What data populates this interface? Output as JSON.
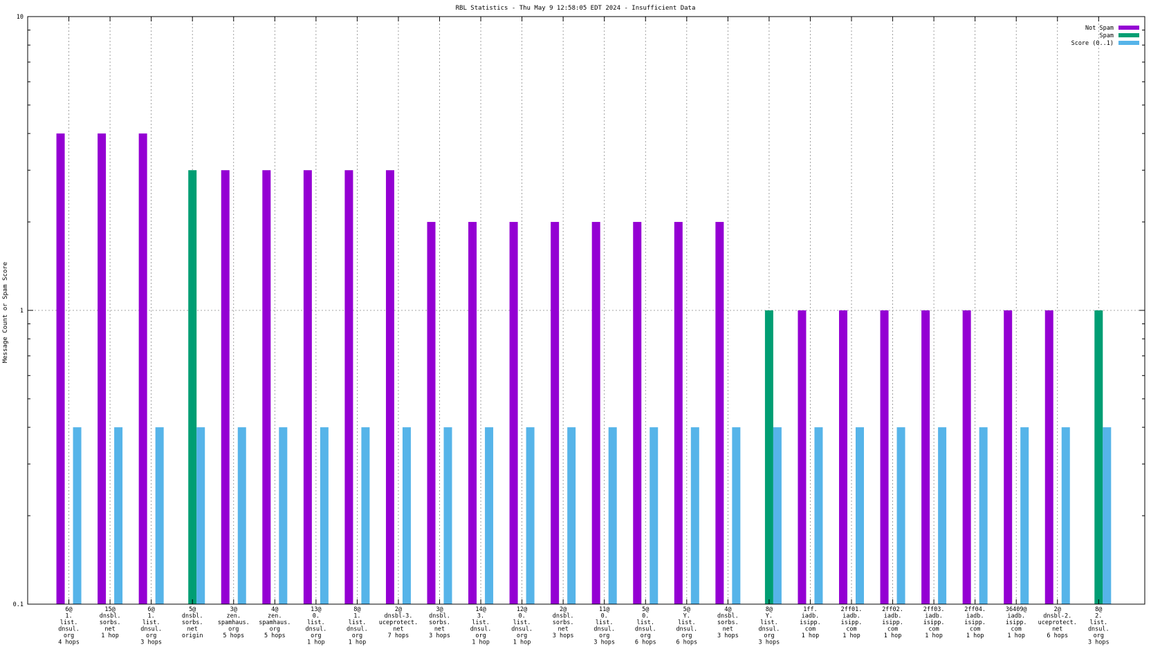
{
  "chart_data": {
    "type": "bar",
    "title": "RBL Statistics - Thu May  9 12:58:05 EDT 2024 - Insufficient Data",
    "xlabel": "",
    "ylabel": "Message Count or Spam Score",
    "yscale": "log",
    "ylim": [
      0.1,
      10
    ],
    "y_tick_labels": [
      "0.1",
      "1",
      "10"
    ],
    "grid": true,
    "legend_position": "top-right",
    "categories": [
      [
        "6@",
        "1.",
        "list.",
        "dnsul.",
        "org",
        "4 hops"
      ],
      [
        "15@",
        "dnsbl.",
        "sorbs.",
        "net",
        "1 hop"
      ],
      [
        "6@",
        "1.",
        "list.",
        "dnsul.",
        "org",
        "3 hops"
      ],
      [
        "5@",
        "dnsbl.",
        "sorbs.",
        "net",
        "origin"
      ],
      [
        "3@",
        "zen.",
        "spamhaus.",
        "org",
        "5 hops"
      ],
      [
        "4@",
        "zen.",
        "spamhaus.",
        "org",
        "5 hops"
      ],
      [
        "13@",
        "0.",
        "list.",
        "dnsul.",
        "org",
        "1 hop"
      ],
      [
        "8@",
        "1.",
        "list.",
        "dnsul.",
        "org",
        "1 hop"
      ],
      [
        "2@",
        "dnsbl-3.",
        "uceprotect.",
        "net",
        "7 hops"
      ],
      [
        "3@",
        "dnsbl.",
        "sorbs.",
        "net",
        "3 hops"
      ],
      [
        "14@",
        "3.",
        "list.",
        "dnsul.",
        "org",
        "1 hop"
      ],
      [
        "12@",
        "0.",
        "list.",
        "dnsul.",
        "org",
        "1 hop"
      ],
      [
        "2@",
        "dnsbl.",
        "sorbs.",
        "net",
        "3 hops"
      ],
      [
        "11@",
        "0.",
        "list.",
        "dnsul.",
        "org",
        "3 hops"
      ],
      [
        "5@",
        "0.",
        "list.",
        "dnsul.",
        "org",
        "6 hops"
      ],
      [
        "5@",
        "Y.",
        "list.",
        "dnsul.",
        "org",
        "6 hops"
      ],
      [
        "4@",
        "dnsbl.",
        "sorbs.",
        "net",
        "3 hops"
      ],
      [
        "8@",
        "Y.",
        "list.",
        "dnsul.",
        "org",
        "3 hops"
      ],
      [
        "1ff.",
        "iadb.",
        "isipp.",
        "com",
        "1 hop"
      ],
      [
        "2ff01.",
        "iadb.",
        "isipp.",
        "com",
        "1 hop"
      ],
      [
        "2ff02.",
        "iadb.",
        "isipp.",
        "com",
        "1 hop"
      ],
      [
        "2ff03.",
        "iadb.",
        "isipp.",
        "com",
        "1 hop"
      ],
      [
        "2ff04.",
        "iadb.",
        "isipp.",
        "com",
        "1 hop"
      ],
      [
        "36409@",
        "iadb.",
        "isipp.",
        "com",
        "1 hop"
      ],
      [
        "2@",
        "dnsbl-2.",
        "uceprotect.",
        "net",
        "6 hops"
      ],
      [
        "8@",
        "2.",
        "list.",
        "dnsul.",
        "org",
        "3 hops"
      ]
    ],
    "series": [
      {
        "name": "Not Spam",
        "color": "#9400d3",
        "values": [
          4,
          4,
          4,
          null,
          3,
          3,
          3,
          3,
          3,
          2,
          2,
          2,
          2,
          2,
          2,
          2,
          2,
          null,
          1,
          1,
          1,
          1,
          1,
          1,
          1,
          null
        ]
      },
      {
        "name": "Spam",
        "color": "#009e73",
        "values": [
          null,
          null,
          null,
          3,
          null,
          null,
          null,
          null,
          null,
          null,
          null,
          null,
          null,
          null,
          null,
          null,
          null,
          1,
          null,
          null,
          null,
          null,
          null,
          null,
          null,
          1
        ]
      },
      {
        "name": "Score (0..1)",
        "color": "#56b4e9",
        "values": [
          0.4,
          0.4,
          0.4,
          0.4,
          0.4,
          0.4,
          0.4,
          0.4,
          0.4,
          0.4,
          0.4,
          0.4,
          0.4,
          0.4,
          0.4,
          0.4,
          0.4,
          0.4,
          0.4,
          0.4,
          0.4,
          0.4,
          0.4,
          0.4,
          0.4,
          0.4
        ]
      }
    ]
  }
}
